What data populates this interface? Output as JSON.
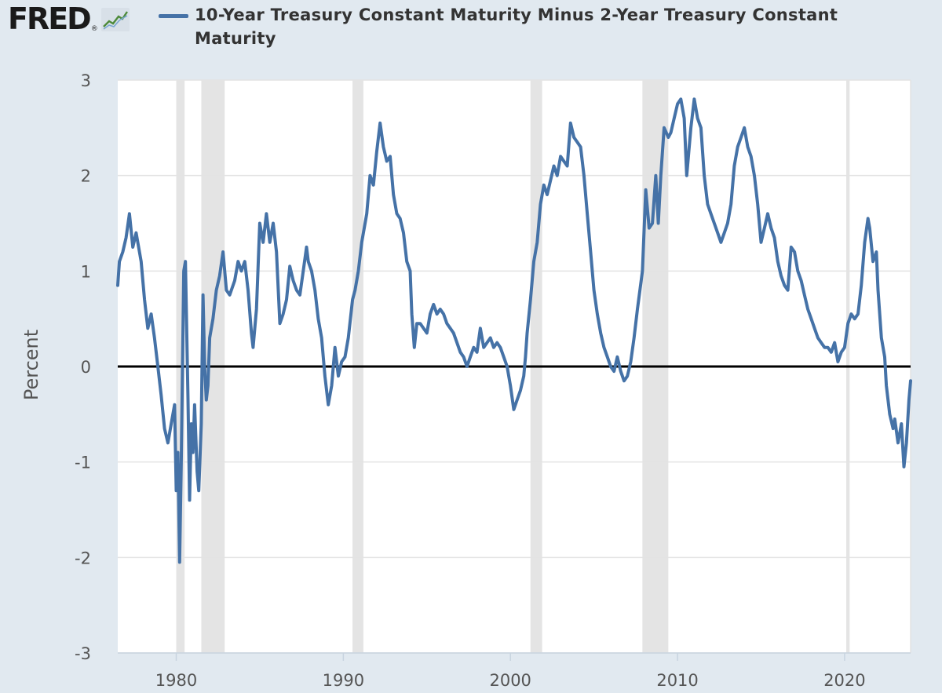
{
  "brand": {
    "logo": "FRED",
    "logo_mark": "®",
    "icon": "trend-line-icon"
  },
  "chart_data": {
    "type": "line",
    "title": "",
    "legend": "top-left",
    "series": [
      {
        "name": "10-Year Treasury Constant Maturity Minus 2-Year Treasury Constant Maturity",
        "color": "#4572a7"
      }
    ],
    "ylabel": "Percent",
    "xlabel": "",
    "xlim": [
      1976.5,
      2023.95
    ],
    "ylim": [
      -3,
      3
    ],
    "xticks": [
      1980,
      1990,
      2000,
      2010,
      2020
    ],
    "yticks": [
      3,
      2,
      1,
      0,
      -1,
      -2,
      -3
    ],
    "grid": true,
    "zero_line": true,
    "recessions": [
      [
        1980.0,
        1980.5
      ],
      [
        1981.5,
        1982.9
      ],
      [
        1990.55,
        1991.2
      ],
      [
        2001.2,
        2001.9
      ],
      [
        2007.9,
        2009.45
      ],
      [
        2020.1,
        2020.3
      ]
    ],
    "points": [
      [
        1976.5,
        0.85
      ],
      [
        1976.6,
        1.1
      ],
      [
        1976.8,
        1.2
      ],
      [
        1977.0,
        1.35
      ],
      [
        1977.2,
        1.6
      ],
      [
        1977.4,
        1.25
      ],
      [
        1977.6,
        1.4
      ],
      [
        1977.9,
        1.1
      ],
      [
        1978.1,
        0.7
      ],
      [
        1978.3,
        0.4
      ],
      [
        1978.5,
        0.55
      ],
      [
        1978.7,
        0.3
      ],
      [
        1978.9,
        0.0
      ],
      [
        1979.1,
        -0.3
      ],
      [
        1979.3,
        -0.65
      ],
      [
        1979.5,
        -0.8
      ],
      [
        1979.7,
        -0.6
      ],
      [
        1979.9,
        -0.4
      ],
      [
        1980.0,
        -1.3
      ],
      [
        1980.1,
        -0.9
      ],
      [
        1980.2,
        -2.05
      ],
      [
        1980.3,
        -1.0
      ],
      [
        1980.45,
        1.0
      ],
      [
        1980.55,
        1.1
      ],
      [
        1980.7,
        -0.3
      ],
      [
        1980.8,
        -1.4
      ],
      [
        1980.9,
        -0.6
      ],
      [
        1981.0,
        -0.9
      ],
      [
        1981.1,
        -0.4
      ],
      [
        1981.25,
        -1.1
      ],
      [
        1981.35,
        -1.3
      ],
      [
        1981.5,
        -0.6
      ],
      [
        1981.6,
        0.75
      ],
      [
        1981.7,
        0.0
      ],
      [
        1981.8,
        -0.35
      ],
      [
        1981.9,
        -0.2
      ],
      [
        1982.0,
        0.3
      ],
      [
        1982.2,
        0.5
      ],
      [
        1982.4,
        0.8
      ],
      [
        1982.6,
        0.95
      ],
      [
        1982.8,
        1.2
      ],
      [
        1983.0,
        0.8
      ],
      [
        1983.2,
        0.75
      ],
      [
        1983.5,
        0.9
      ],
      [
        1983.7,
        1.1
      ],
      [
        1983.9,
        1.0
      ],
      [
        1984.1,
        1.1
      ],
      [
        1984.3,
        0.8
      ],
      [
        1984.5,
        0.35
      ],
      [
        1984.6,
        0.2
      ],
      [
        1984.8,
        0.6
      ],
      [
        1985.0,
        1.5
      ],
      [
        1985.2,
        1.3
      ],
      [
        1985.4,
        1.6
      ],
      [
        1985.6,
        1.3
      ],
      [
        1985.8,
        1.5
      ],
      [
        1986.0,
        1.2
      ],
      [
        1986.2,
        0.45
      ],
      [
        1986.4,
        0.55
      ],
      [
        1986.6,
        0.7
      ],
      [
        1986.8,
        1.05
      ],
      [
        1987.0,
        0.9
      ],
      [
        1987.2,
        0.8
      ],
      [
        1987.4,
        0.75
      ],
      [
        1987.6,
        1.0
      ],
      [
        1987.8,
        1.25
      ],
      [
        1987.9,
        1.1
      ],
      [
        1988.1,
        1.0
      ],
      [
        1988.3,
        0.8
      ],
      [
        1988.5,
        0.5
      ],
      [
        1988.7,
        0.3
      ],
      [
        1988.9,
        -0.1
      ],
      [
        1989.1,
        -0.4
      ],
      [
        1989.3,
        -0.2
      ],
      [
        1989.5,
        0.2
      ],
      [
        1989.7,
        -0.1
      ],
      [
        1989.9,
        0.05
      ],
      [
        1990.1,
        0.1
      ],
      [
        1990.3,
        0.3
      ],
      [
        1990.55,
        0.7
      ],
      [
        1990.7,
        0.8
      ],
      [
        1990.9,
        1.0
      ],
      [
        1991.1,
        1.3
      ],
      [
        1991.4,
        1.6
      ],
      [
        1991.6,
        2.0
      ],
      [
        1991.8,
        1.9
      ],
      [
        1992.0,
        2.25
      ],
      [
        1992.2,
        2.55
      ],
      [
        1992.4,
        2.3
      ],
      [
        1992.6,
        2.15
      ],
      [
        1992.8,
        2.2
      ],
      [
        1993.0,
        1.8
      ],
      [
        1993.2,
        1.6
      ],
      [
        1993.4,
        1.55
      ],
      [
        1993.6,
        1.4
      ],
      [
        1993.8,
        1.1
      ],
      [
        1994.0,
        1.0
      ],
      [
        1994.1,
        0.55
      ],
      [
        1994.25,
        0.2
      ],
      [
        1994.4,
        0.45
      ],
      [
        1994.6,
        0.45
      ],
      [
        1994.8,
        0.4
      ],
      [
        1995.0,
        0.35
      ],
      [
        1995.2,
        0.55
      ],
      [
        1995.4,
        0.65
      ],
      [
        1995.6,
        0.55
      ],
      [
        1995.8,
        0.6
      ],
      [
        1996.0,
        0.55
      ],
      [
        1996.2,
        0.45
      ],
      [
        1996.4,
        0.4
      ],
      [
        1996.6,
        0.35
      ],
      [
        1996.8,
        0.25
      ],
      [
        1997.0,
        0.15
      ],
      [
        1997.2,
        0.1
      ],
      [
        1997.4,
        0.0
      ],
      [
        1997.6,
        0.1
      ],
      [
        1997.8,
        0.2
      ],
      [
        1998.0,
        0.15
      ],
      [
        1998.2,
        0.4
      ],
      [
        1998.4,
        0.2
      ],
      [
        1998.6,
        0.25
      ],
      [
        1998.8,
        0.3
      ],
      [
        1999.0,
        0.2
      ],
      [
        1999.2,
        0.25
      ],
      [
        1999.4,
        0.2
      ],
      [
        1999.6,
        0.1
      ],
      [
        1999.8,
        0.0
      ],
      [
        2000.0,
        -0.2
      ],
      [
        2000.2,
        -0.45
      ],
      [
        2000.4,
        -0.35
      ],
      [
        2000.6,
        -0.25
      ],
      [
        2000.8,
        -0.1
      ],
      [
        2000.9,
        0.1
      ],
      [
        2001.0,
        0.35
      ],
      [
        2001.2,
        0.7
      ],
      [
        2001.4,
        1.1
      ],
      [
        2001.6,
        1.3
      ],
      [
        2001.8,
        1.7
      ],
      [
        2002.0,
        1.9
      ],
      [
        2002.2,
        1.8
      ],
      [
        2002.4,
        1.95
      ],
      [
        2002.6,
        2.1
      ],
      [
        2002.8,
        2.0
      ],
      [
        2003.0,
        2.2
      ],
      [
        2003.2,
        2.15
      ],
      [
        2003.4,
        2.1
      ],
      [
        2003.6,
        2.55
      ],
      [
        2003.8,
        2.4
      ],
      [
        2004.0,
        2.35
      ],
      [
        2004.2,
        2.3
      ],
      [
        2004.4,
        2.0
      ],
      [
        2004.6,
        1.6
      ],
      [
        2004.8,
        1.2
      ],
      [
        2005.0,
        0.8
      ],
      [
        2005.2,
        0.55
      ],
      [
        2005.4,
        0.35
      ],
      [
        2005.6,
        0.2
      ],
      [
        2005.8,
        0.1
      ],
      [
        2006.0,
        0.0
      ],
      [
        2006.2,
        -0.05
      ],
      [
        2006.4,
        0.1
      ],
      [
        2006.6,
        -0.05
      ],
      [
        2006.8,
        -0.15
      ],
      [
        2007.0,
        -0.1
      ],
      [
        2007.2,
        0.05
      ],
      [
        2007.4,
        0.3
      ],
      [
        2007.6,
        0.6
      ],
      [
        2007.9,
        1.0
      ],
      [
        2008.1,
        1.85
      ],
      [
        2008.3,
        1.45
      ],
      [
        2008.5,
        1.5
      ],
      [
        2008.7,
        2.0
      ],
      [
        2008.85,
        1.5
      ],
      [
        2009.0,
        2.0
      ],
      [
        2009.2,
        2.5
      ],
      [
        2009.45,
        2.4
      ],
      [
        2009.6,
        2.45
      ],
      [
        2009.8,
        2.6
      ],
      [
        2010.0,
        2.75
      ],
      [
        2010.2,
        2.8
      ],
      [
        2010.4,
        2.6
      ],
      [
        2010.55,
        2.0
      ],
      [
        2010.8,
        2.5
      ],
      [
        2011.0,
        2.8
      ],
      [
        2011.2,
        2.6
      ],
      [
        2011.4,
        2.5
      ],
      [
        2011.6,
        2.0
      ],
      [
        2011.8,
        1.7
      ],
      [
        2012.0,
        1.6
      ],
      [
        2012.2,
        1.5
      ],
      [
        2012.4,
        1.4
      ],
      [
        2012.6,
        1.3
      ],
      [
        2012.8,
        1.4
      ],
      [
        2013.0,
        1.5
      ],
      [
        2013.2,
        1.7
      ],
      [
        2013.4,
        2.1
      ],
      [
        2013.6,
        2.3
      ],
      [
        2013.8,
        2.4
      ],
      [
        2014.0,
        2.5
      ],
      [
        2014.2,
        2.3
      ],
      [
        2014.4,
        2.2
      ],
      [
        2014.6,
        2.0
      ],
      [
        2014.8,
        1.7
      ],
      [
        2015.0,
        1.3
      ],
      [
        2015.2,
        1.45
      ],
      [
        2015.4,
        1.6
      ],
      [
        2015.6,
        1.45
      ],
      [
        2015.8,
        1.35
      ],
      [
        2016.0,
        1.1
      ],
      [
        2016.2,
        0.95
      ],
      [
        2016.4,
        0.85
      ],
      [
        2016.6,
        0.8
      ],
      [
        2016.8,
        1.25
      ],
      [
        2017.0,
        1.2
      ],
      [
        2017.2,
        1.0
      ],
      [
        2017.4,
        0.9
      ],
      [
        2017.6,
        0.75
      ],
      [
        2017.8,
        0.6
      ],
      [
        2018.0,
        0.5
      ],
      [
        2018.2,
        0.4
      ],
      [
        2018.4,
        0.3
      ],
      [
        2018.6,
        0.25
      ],
      [
        2018.8,
        0.2
      ],
      [
        2019.0,
        0.2
      ],
      [
        2019.2,
        0.15
      ],
      [
        2019.4,
        0.25
      ],
      [
        2019.6,
        0.05
      ],
      [
        2019.8,
        0.15
      ],
      [
        2020.0,
        0.2
      ],
      [
        2020.2,
        0.45
      ],
      [
        2020.4,
        0.55
      ],
      [
        2020.6,
        0.5
      ],
      [
        2020.8,
        0.55
      ],
      [
        2021.0,
        0.85
      ],
      [
        2021.2,
        1.3
      ],
      [
        2021.4,
        1.55
      ],
      [
        2021.5,
        1.45
      ],
      [
        2021.7,
        1.1
      ],
      [
        2021.9,
        1.2
      ],
      [
        2022.0,
        0.8
      ],
      [
        2022.2,
        0.3
      ],
      [
        2022.4,
        0.1
      ],
      [
        2022.5,
        -0.2
      ],
      [
        2022.7,
        -0.5
      ],
      [
        2022.9,
        -0.65
      ],
      [
        2023.0,
        -0.55
      ],
      [
        2023.2,
        -0.8
      ],
      [
        2023.4,
        -0.6
      ],
      [
        2023.55,
        -1.05
      ],
      [
        2023.7,
        -0.8
      ],
      [
        2023.85,
        -0.35
      ],
      [
        2023.95,
        -0.15
      ]
    ]
  }
}
